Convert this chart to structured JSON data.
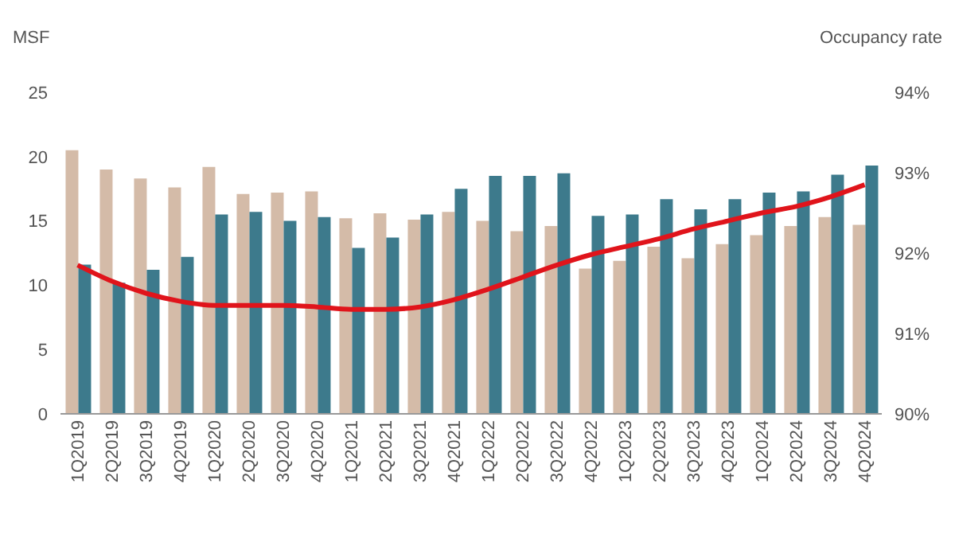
{
  "chart_data": {
    "type": "bar",
    "ylabel": "MSF",
    "y2label": "Occupancy rate",
    "categories": [
      "1Q2019",
      "2Q2019",
      "3Q2019",
      "4Q2019",
      "1Q2020",
      "2Q2020",
      "3Q2020",
      "4Q2020",
      "1Q2021",
      "2Q2021",
      "3Q2021",
      "4Q2021",
      "1Q2022",
      "2Q2022",
      "3Q2022",
      "4Q2022",
      "1Q2023",
      "2Q2023",
      "3Q2023",
      "4Q2023",
      "1Q2024",
      "2Q2024",
      "3Q2024",
      "4Q2024"
    ],
    "series": [
      {
        "color": "#d4bba8",
        "values": [
          20.5,
          19.0,
          18.3,
          17.6,
          19.2,
          17.1,
          17.2,
          17.3,
          15.2,
          15.6,
          15.1,
          15.7,
          15.0,
          14.2,
          14.6,
          11.3,
          11.9,
          13.0,
          12.1,
          13.2,
          13.9,
          14.6,
          15.3,
          14.7
        ]
      },
      {
        "color": "#3d7a8c",
        "values": [
          11.6,
          10.2,
          11.2,
          12.2,
          15.5,
          15.7,
          15.0,
          15.3,
          12.9,
          13.7,
          15.5,
          17.5,
          18.5,
          18.5,
          18.7,
          15.4,
          15.5,
          16.7,
          15.9,
          16.7,
          17.2,
          17.3,
          18.6,
          19.3
        ]
      },
      {
        "type": "line",
        "axis": "y2",
        "color": "#e0141b",
        "values": [
          91.85,
          91.65,
          91.5,
          91.4,
          91.35,
          91.35,
          91.35,
          91.33,
          91.3,
          91.3,
          91.33,
          91.42,
          91.55,
          91.7,
          91.85,
          91.98,
          92.08,
          92.18,
          92.3,
          92.4,
          92.5,
          92.58,
          92.7,
          92.85
        ]
      }
    ],
    "ylim": [
      0,
      25
    ],
    "yticks": [
      0,
      5,
      10,
      15,
      20,
      25
    ],
    "y2lim": [
      90,
      94
    ],
    "y2ticks": [
      {
        "value": 90,
        "label": "90%"
      },
      {
        "value": 91,
        "label": "91%"
      },
      {
        "value": 92,
        "label": "92%"
      },
      {
        "value": 93,
        "label": "93%"
      },
      {
        "value": 94,
        "label": "94%"
      }
    ],
    "grid": false,
    "legend": false,
    "marker": "none",
    "line_style": "solid"
  }
}
